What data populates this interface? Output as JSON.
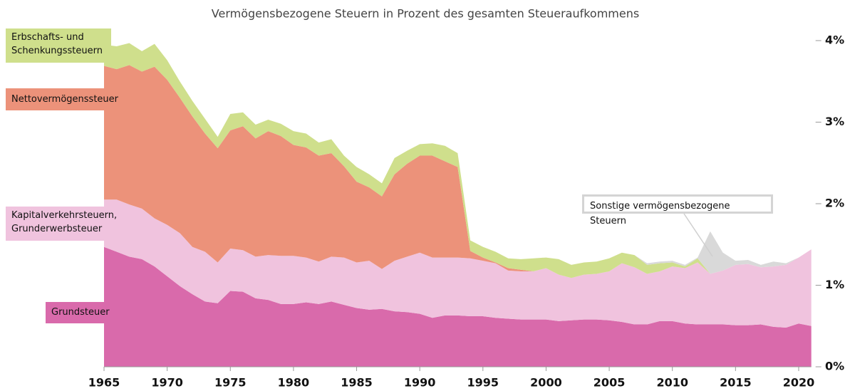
{
  "chart_data": {
    "type": "stacked_area",
    "title": "Vermögensbezogene Steuern in Prozent des gesamten Steueraufkommens",
    "x": [
      1965,
      1966,
      1967,
      1968,
      1969,
      1970,
      1971,
      1972,
      1973,
      1974,
      1975,
      1976,
      1977,
      1978,
      1979,
      1980,
      1981,
      1982,
      1983,
      1984,
      1985,
      1986,
      1987,
      1988,
      1989,
      1990,
      1991,
      1992,
      1993,
      1994,
      1995,
      1996,
      1997,
      1998,
      1999,
      2000,
      2001,
      2002,
      2003,
      2004,
      2005,
      2006,
      2007,
      2008,
      2009,
      2010,
      2011,
      2012,
      2013,
      2014,
      2015,
      2016,
      2017,
      2018,
      2019,
      2020,
      2021
    ],
    "xlim": [
      1965,
      2021
    ],
    "xticks": [
      1965,
      1970,
      1975,
      1980,
      1985,
      1990,
      1995,
      2000,
      2005,
      2010,
      2015,
      2020
    ],
    "ylim": [
      0,
      4
    ],
    "yticks": [
      {
        "value": 0,
        "label": "0%"
      },
      {
        "value": 1,
        "label": "1%"
      },
      {
        "value": 2,
        "label": "2%"
      },
      {
        "value": 3,
        "label": "3%"
      },
      {
        "value": 4,
        "label": "4%"
      }
    ],
    "series": [
      {
        "name": "Grundsteuer",
        "color": "#d96aab",
        "values": [
          1.47,
          1.41,
          1.35,
          1.32,
          1.23,
          1.11,
          0.99,
          0.89,
          0.8,
          0.78,
          0.93,
          0.92,
          0.84,
          0.82,
          0.77,
          0.77,
          0.79,
          0.77,
          0.8,
          0.76,
          0.72,
          0.7,
          0.71,
          0.68,
          0.67,
          0.65,
          0.6,
          0.63,
          0.63,
          0.62,
          0.62,
          0.6,
          0.59,
          0.58,
          0.58,
          0.58,
          0.56,
          0.57,
          0.58,
          0.58,
          0.57,
          0.55,
          0.52,
          0.52,
          0.56,
          0.56,
          0.53,
          0.52,
          0.52,
          0.52,
          0.51,
          0.51,
          0.52,
          0.49,
          0.48,
          0.53,
          0.5
        ]
      },
      {
        "name": "Kapitalverkehrsteuern,\nGrunderwerbsteuer",
        "color": "#f0c3de",
        "values": [
          0.58,
          0.64,
          0.64,
          0.62,
          0.59,
          0.63,
          0.65,
          0.58,
          0.61,
          0.5,
          0.52,
          0.51,
          0.51,
          0.55,
          0.59,
          0.59,
          0.55,
          0.52,
          0.55,
          0.58,
          0.56,
          0.6,
          0.49,
          0.62,
          0.68,
          0.75,
          0.74,
          0.71,
          0.71,
          0.71,
          0.68,
          0.67,
          0.59,
          0.59,
          0.59,
          0.63,
          0.57,
          0.52,
          0.55,
          0.56,
          0.6,
          0.72,
          0.7,
          0.62,
          0.61,
          0.67,
          0.68,
          0.76,
          0.62,
          0.66,
          0.74,
          0.75,
          0.7,
          0.74,
          0.77,
          0.81,
          0.94
        ]
      },
      {
        "name": "Nettovermögenssteuer",
        "color": "#ec927a",
        "values": [
          1.64,
          1.6,
          1.71,
          1.68,
          1.86,
          1.78,
          1.66,
          1.6,
          1.45,
          1.4,
          1.45,
          1.52,
          1.45,
          1.52,
          1.47,
          1.36,
          1.35,
          1.3,
          1.27,
          1.12,
          0.99,
          0.9,
          0.89,
          1.06,
          1.14,
          1.19,
          1.25,
          1.18,
          1.11,
          0.09,
          0.04,
          0.01,
          0.03,
          0.02,
          0,
          0,
          0,
          0,
          0,
          0,
          0,
          0,
          0,
          0,
          0,
          0,
          0,
          0,
          0,
          0,
          0,
          0,
          0,
          0,
          0,
          0,
          0
        ]
      },
      {
        "name": "Erbschafts- und\nSchenkungssteuern",
        "color": "#cfdf8c",
        "values": [
          0.26,
          0.28,
          0.27,
          0.25,
          0.28,
          0.24,
          0.2,
          0.19,
          0.18,
          0.14,
          0.2,
          0.17,
          0.17,
          0.14,
          0.15,
          0.17,
          0.17,
          0.16,
          0.17,
          0.13,
          0.18,
          0.16,
          0.16,
          0.2,
          0.16,
          0.14,
          0.15,
          0.19,
          0.17,
          0.13,
          0.13,
          0.13,
          0.12,
          0.13,
          0.16,
          0.13,
          0.19,
          0.16,
          0.15,
          0.15,
          0.16,
          0.13,
          0.15,
          0.11,
          0.1,
          0.05,
          0.02,
          0.05,
          0,
          0,
          0,
          0,
          0,
          0,
          0,
          0,
          0
        ]
      },
      {
        "name": "Sonstige vermögensbezogene Steuern",
        "color": "#d9d9d9",
        "values": [
          0,
          0,
          0,
          0,
          0,
          0,
          0,
          0,
          0,
          0,
          0,
          0,
          0,
          0,
          0,
          0,
          0,
          0,
          0,
          0,
          0,
          0,
          0,
          0,
          0,
          0,
          0,
          0,
          0,
          0,
          0,
          0,
          0,
          0,
          0,
          0,
          0,
          0,
          0,
          0,
          0,
          0,
          0,
          0.02,
          0.02,
          0.02,
          0.02,
          0.01,
          0.52,
          0.22,
          0.05,
          0.05,
          0.03,
          0.06,
          0.02,
          0,
          0
        ]
      }
    ]
  }
}
